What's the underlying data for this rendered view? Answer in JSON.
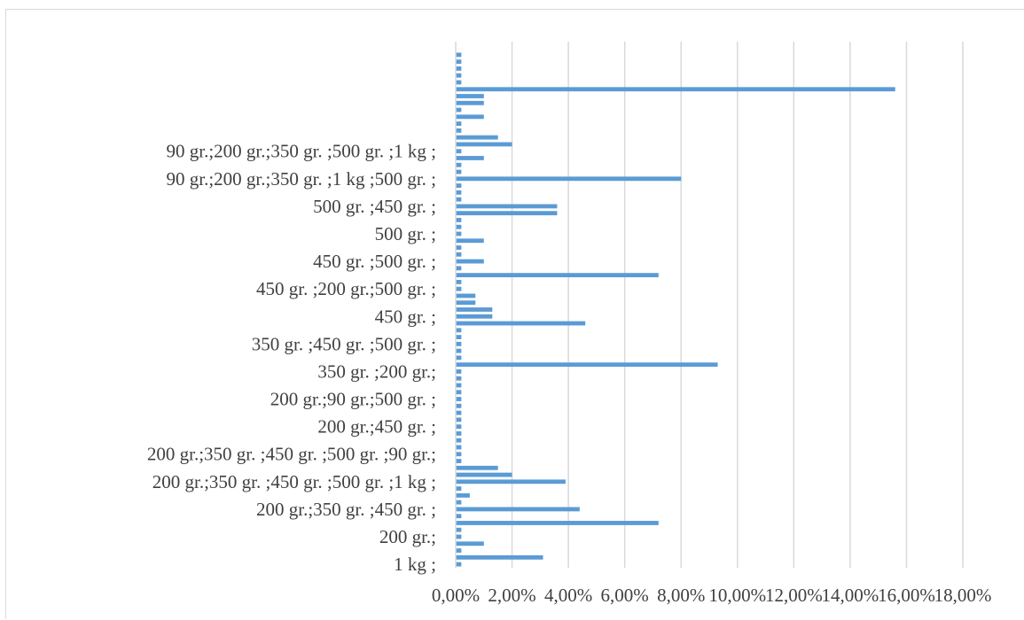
{
  "chart_data": {
    "type": "bar",
    "orientation": "horizontal",
    "title": "",
    "xlabel": "",
    "ylabel": "",
    "xlim": [
      0,
      18
    ],
    "x_ticks": [
      "0,00%",
      "2,00%",
      "4,00%",
      "6,00%",
      "8,00%",
      "10,00%",
      "12,00%",
      "14,00%",
      "16,00%",
      "18,00%"
    ],
    "grid": "vertical",
    "legend": "none",
    "bar_color": "#5b9bd5",
    "visible_category_labels": [
      "1 kg ;",
      "200 gr.;",
      "200 gr.;350 gr. ;450 gr. ;",
      "200 gr.;350 gr. ;450 gr. ;500 gr. ;1 kg ;",
      "200 gr.;350 gr. ;450 gr. ;500 gr. ;90 gr.;",
      "200 gr.;450 gr. ;",
      "200 gr.;90 gr.;500 gr. ;",
      "350 gr. ;200 gr.;",
      "350 gr. ;450 gr. ;500 gr. ;",
      "450 gr. ;",
      "450 gr. ;200 gr.;500 gr. ;",
      "450 gr. ;500 gr. ;",
      "500 gr. ;",
      "500 gr. ;450 gr. ;",
      "90 gr.;200 gr.;350 gr. ;1 kg ;500 gr. ;",
      "90 gr.;200 gr.;350 gr. ;500 gr. ;1 kg ;"
    ],
    "label_every_n_categories": 4,
    "values_bottom_to_top": [
      0.2,
      3.1,
      0.2,
      1.0,
      0.2,
      0.2,
      7.2,
      0.2,
      4.4,
      0.2,
      0.5,
      0.2,
      3.9,
      2.0,
      1.5,
      0.2,
      0.2,
      0.2,
      0.2,
      0.2,
      0.2,
      0.2,
      0.2,
      0.2,
      0.2,
      0.2,
      0.2,
      0.2,
      0.2,
      9.3,
      0.2,
      0.2,
      0.2,
      0.2,
      0.2,
      4.6,
      1.3,
      1.3,
      0.7,
      0.7,
      0.2,
      0.2,
      7.2,
      0.2,
      1.0,
      0.2,
      0.2,
      1.0,
      0.2,
      0.2,
      0.2,
      3.6,
      3.6,
      0.2,
      0.2,
      0.2,
      8.0,
      0.2,
      0.2,
      1.0,
      0.2,
      2.0,
      1.5,
      0.2,
      0.2,
      1.0,
      0.2,
      1.0,
      1.0,
      15.6,
      0.2,
      0.2,
      0.2,
      0.2,
      0.2
    ]
  }
}
